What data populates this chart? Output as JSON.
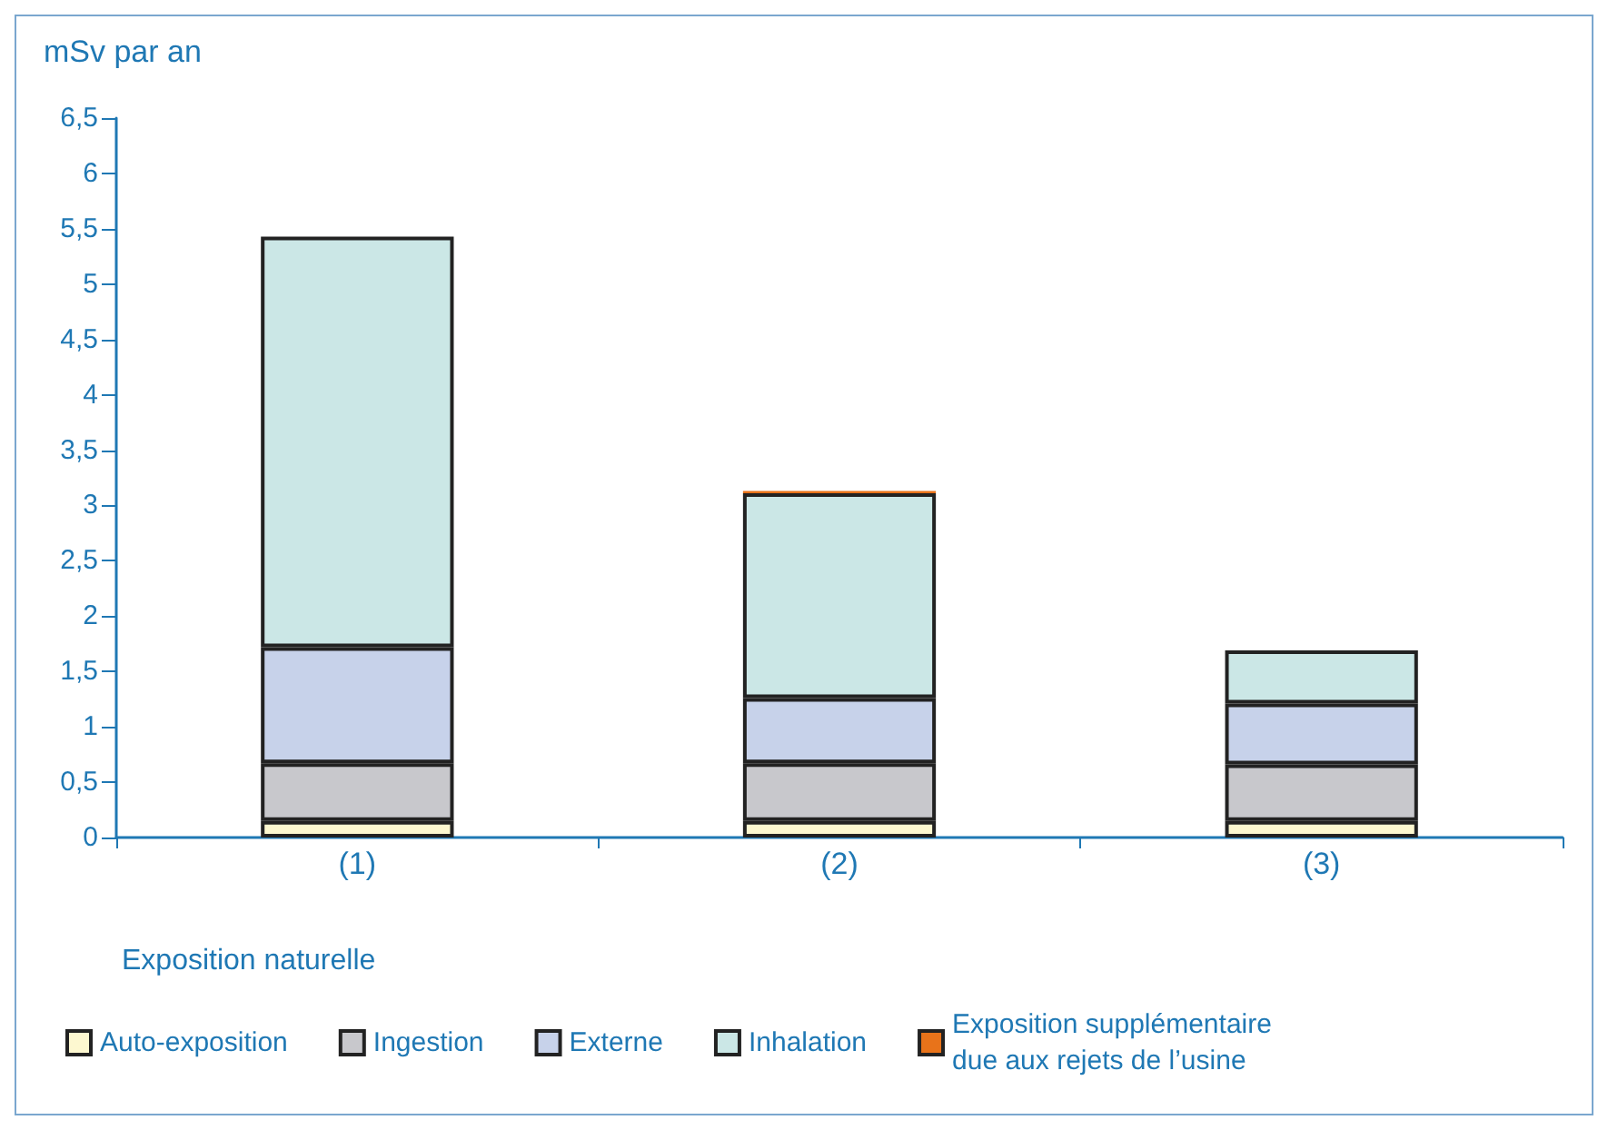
{
  "chart_data": {
    "type": "bar",
    "stacked": true,
    "ylabel": "mSv par an",
    "legend_title": "Exposition naturelle",
    "categories": [
      "(1)",
      "(2)",
      "(3)"
    ],
    "series": [
      {
        "name": "Auto-exposition",
        "color": "#fdf8d0",
        "values": [
          0.15,
          0.15,
          0.15
        ]
      },
      {
        "name": "Ingestion",
        "color": "#c8c8cc",
        "values": [
          0.52,
          0.52,
          0.51
        ]
      },
      {
        "name": "Externe",
        "color": "#c7d2ea",
        "values": [
          1.05,
          0.59,
          0.55
        ]
      },
      {
        "name": "Inhalation",
        "color": "#cbe7e6",
        "values": [
          3.71,
          1.85,
          0.48
        ]
      },
      {
        "name": "Exposition supplémentaire due aux rejets de l’usine",
        "color": "#e8731a",
        "values": [
          null,
          0.02,
          null
        ]
      }
    ],
    "ylim": [
      0,
      6.5
    ],
    "yticks": [
      0,
      {
        "value": 0.5,
        "label": "0,5"
      },
      1,
      {
        "value": 1.5,
        "label": "1,5"
      },
      2,
      {
        "value": 2.5,
        "label": "2,5"
      },
      3,
      {
        "value": 3.5,
        "label": "3,5"
      },
      4,
      {
        "value": 4.5,
        "label": "4,5"
      },
      5,
      {
        "value": 5.5,
        "label": "5,5"
      },
      6,
      {
        "value": 6.5,
        "label": "6,5"
      }
    ],
    "grid": false,
    "legend": "bottom"
  }
}
